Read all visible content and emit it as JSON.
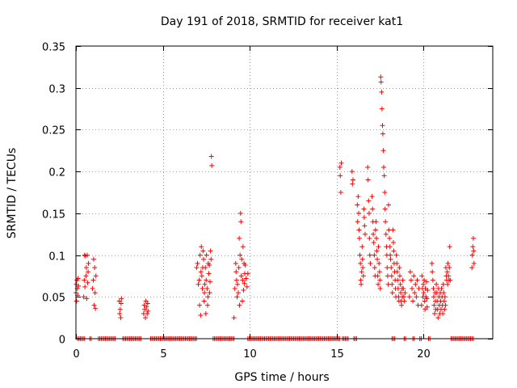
{
  "chart_data": {
    "type": "scatter",
    "title": "Day 191 of 2018, SRMTID for receiver kat1",
    "xlabel": "GPS time / hours",
    "ylabel": "SRMTID / TECUs",
    "xlim": [
      0,
      24
    ],
    "ylim": [
      0,
      0.35
    ],
    "xticks": [
      0,
      5,
      10,
      15,
      20
    ],
    "xtick_labels": [
      "0",
      "5",
      "10",
      "15",
      "20"
    ],
    "yticks": [
      0,
      0.05,
      0.1,
      0.15,
      0.2,
      0.25,
      0.3,
      0.35
    ],
    "ytick_labels": [
      "0",
      "0.05",
      "0.1",
      "0.15",
      "0.2",
      "0.25",
      "0.3",
      "0.35"
    ],
    "grid": true,
    "marker": "+",
    "color": "#ff0000",
    "series": [
      {
        "name": "SRMTID",
        "points": [
          [
            0.0,
            0.055
          ],
          [
            0.02,
            0.065
          ],
          [
            0.04,
            0.045
          ],
          [
            0.06,
            0.07
          ],
          [
            0.08,
            0.06
          ],
          [
            0.1,
            0.052
          ],
          [
            0.12,
            0.072
          ],
          [
            0.15,
            0.063
          ],
          [
            0.45,
            0.05
          ],
          [
            0.48,
            0.07
          ],
          [
            0.5,
            0.1
          ],
          [
            0.52,
            0.062
          ],
          [
            0.55,
            0.099
          ],
          [
            0.58,
            0.075
          ],
          [
            0.6,
            0.085
          ],
          [
            0.62,
            0.048
          ],
          [
            0.65,
            0.1
          ],
          [
            0.68,
            0.067
          ],
          [
            0.7,
            0.08
          ],
          [
            0.72,
            0.09
          ],
          [
            0.95,
            0.06
          ],
          [
            1.0,
            0.07
          ],
          [
            1.02,
            0.095
          ],
          [
            1.05,
            0.04
          ],
          [
            1.08,
            0.085
          ],
          [
            1.1,
            0.055
          ],
          [
            1.12,
            0.036
          ],
          [
            1.15,
            0.075
          ],
          [
            2.5,
            0.045
          ],
          [
            2.52,
            0.03
          ],
          [
            2.55,
            0.035
          ],
          [
            2.58,
            0.025
          ],
          [
            2.6,
            0.042
          ],
          [
            2.62,
            0.048
          ],
          [
            3.9,
            0.03
          ],
          [
            3.93,
            0.04
          ],
          [
            3.96,
            0.035
          ],
          [
            4.0,
            0.025
          ],
          [
            4.03,
            0.045
          ],
          [
            4.06,
            0.038
          ],
          [
            4.1,
            0.03
          ],
          [
            4.13,
            0.042
          ],
          [
            4.15,
            0.033
          ],
          [
            6.95,
            0.085
          ],
          [
            7.0,
            0.09
          ],
          [
            7.05,
            0.065
          ],
          [
            7.1,
            0.07
          ],
          [
            7.12,
            0.04
          ],
          [
            7.15,
            0.1
          ],
          [
            7.18,
            0.028
          ],
          [
            7.2,
            0.08
          ],
          [
            7.22,
            0.11
          ],
          [
            7.25,
            0.075
          ],
          [
            7.28,
            0.06
          ],
          [
            7.3,
            0.085
          ],
          [
            7.32,
            0.105
          ],
          [
            7.35,
            0.095
          ],
          [
            7.38,
            0.045
          ],
          [
            7.4,
            0.055
          ],
          [
            7.42,
            0.065
          ],
          [
            7.45,
            0.085
          ],
          [
            7.48,
            0.03
          ],
          [
            7.5,
            0.07
          ],
          [
            7.52,
            0.1
          ],
          [
            7.55,
            0.06
          ],
          [
            7.58,
            0.04
          ],
          [
            7.6,
            0.05
          ],
          [
            7.62,
            0.09
          ],
          [
            7.65,
            0.078
          ],
          [
            7.68,
            0.088
          ],
          [
            7.7,
            0.055
          ],
          [
            7.72,
            0.068
          ],
          [
            7.75,
            0.105
          ],
          [
            7.78,
            0.095
          ],
          [
            7.8,
            0.218
          ],
          [
            7.82,
            0.207
          ],
          [
            9.1,
            0.025
          ],
          [
            9.15,
            0.06
          ],
          [
            9.2,
            0.09
          ],
          [
            9.22,
            0.08
          ],
          [
            9.25,
            0.07
          ],
          [
            9.28,
            0.05
          ],
          [
            9.3,
            0.065
          ],
          [
            9.35,
            0.055
          ],
          [
            9.38,
            0.085
          ],
          [
            9.4,
            0.12
          ],
          [
            9.42,
            0.04
          ],
          [
            9.45,
            0.1
          ],
          [
            9.48,
            0.15
          ],
          [
            9.5,
            0.14
          ],
          [
            9.52,
            0.075
          ],
          [
            9.55,
            0.095
          ],
          [
            9.58,
            0.045
          ],
          [
            9.6,
            0.07
          ],
          [
            9.62,
            0.11
          ],
          [
            9.65,
            0.058
          ],
          [
            9.68,
            0.09
          ],
          [
            9.7,
            0.066
          ],
          [
            9.72,
            0.078
          ],
          [
            9.75,
            0.088
          ],
          [
            9.8,
            0.072
          ],
          [
            9.85,
            0.062
          ],
          [
            9.9,
            0.078
          ],
          [
            15.2,
            0.205
          ],
          [
            15.22,
            0.195
          ],
          [
            15.25,
            0.175
          ],
          [
            15.28,
            0.21
          ],
          [
            15.9,
            0.2
          ],
          [
            15.92,
            0.185
          ],
          [
            15.95,
            0.19
          ],
          [
            16.2,
            0.16
          ],
          [
            16.22,
            0.14
          ],
          [
            16.25,
            0.17
          ],
          [
            16.28,
            0.15
          ],
          [
            16.3,
            0.13
          ],
          [
            16.32,
            0.12
          ],
          [
            16.35,
            0.1
          ],
          [
            16.38,
            0.09
          ],
          [
            16.4,
            0.07
          ],
          [
            16.42,
            0.065
          ],
          [
            16.45,
            0.08
          ],
          [
            16.48,
            0.11
          ],
          [
            16.5,
            0.095
          ],
          [
            16.52,
            0.085
          ],
          [
            16.55,
            0.075
          ],
          [
            16.58,
            0.155
          ],
          [
            16.6,
            0.145
          ],
          [
            16.62,
            0.135
          ],
          [
            16.65,
            0.125
          ],
          [
            16.8,
            0.205
          ],
          [
            16.82,
            0.19
          ],
          [
            16.85,
            0.165
          ],
          [
            16.88,
            0.15
          ],
          [
            16.9,
            0.12
          ],
          [
            16.92,
            0.1
          ],
          [
            16.95,
            0.09
          ],
          [
            17.05,
            0.17
          ],
          [
            17.08,
            0.155
          ],
          [
            17.1,
            0.14
          ],
          [
            17.12,
            0.125
          ],
          [
            17.15,
            0.115
          ],
          [
            17.18,
            0.1
          ],
          [
            17.2,
            0.085
          ],
          [
            17.22,
            0.075
          ],
          [
            17.25,
            0.13
          ],
          [
            17.28,
            0.14
          ],
          [
            17.3,
            0.12
          ],
          [
            17.32,
            0.105
          ],
          [
            17.35,
            0.095
          ],
          [
            17.38,
            0.075
          ],
          [
            17.4,
            0.065
          ],
          [
            17.42,
            0.11
          ],
          [
            17.45,
            0.09
          ],
          [
            17.48,
            0.08
          ],
          [
            17.5,
            0.07
          ],
          [
            17.52,
            0.06
          ],
          [
            17.55,
            0.313
          ],
          [
            17.57,
            0.307
          ],
          [
            17.6,
            0.295
          ],
          [
            17.62,
            0.275
          ],
          [
            17.65,
            0.255
          ],
          [
            17.67,
            0.245
          ],
          [
            17.7,
            0.225
          ],
          [
            17.72,
            0.205
          ],
          [
            17.75,
            0.195
          ],
          [
            17.78,
            0.175
          ],
          [
            17.8,
            0.155
          ],
          [
            17.82,
            0.14
          ],
          [
            17.85,
            0.125
          ],
          [
            17.88,
            0.11
          ],
          [
            17.9,
            0.1
          ],
          [
            17.92,
            0.085
          ],
          [
            17.95,
            0.075
          ],
          [
            17.98,
            0.065
          ],
          [
            18.0,
            0.16
          ],
          [
            18.02,
            0.13
          ],
          [
            18.05,
            0.12
          ],
          [
            18.08,
            0.11
          ],
          [
            18.1,
            0.1
          ],
          [
            18.12,
            0.095
          ],
          [
            18.15,
            0.085
          ],
          [
            18.18,
            0.075
          ],
          [
            18.2,
            0.065
          ],
          [
            18.22,
            0.055
          ],
          [
            18.25,
            0.13
          ],
          [
            18.28,
            0.115
          ],
          [
            18.3,
            0.105
          ],
          [
            18.32,
            0.09
          ],
          [
            18.35,
            0.08
          ],
          [
            18.38,
            0.07
          ],
          [
            18.4,
            0.06
          ],
          [
            18.42,
            0.05
          ],
          [
            18.45,
            0.1
          ],
          [
            18.48,
            0.09
          ],
          [
            18.5,
            0.08
          ],
          [
            18.52,
            0.07
          ],
          [
            18.55,
            0.06
          ],
          [
            18.58,
            0.05
          ],
          [
            18.6,
            0.045
          ],
          [
            18.62,
            0.085
          ],
          [
            18.65,
            0.075
          ],
          [
            18.68,
            0.065
          ],
          [
            18.7,
            0.055
          ],
          [
            18.72,
            0.045
          ],
          [
            18.75,
            0.04
          ],
          [
            18.78,
            0.06
          ],
          [
            18.8,
            0.05
          ],
          [
            18.82,
            0.07
          ],
          [
            18.85,
            0.06
          ],
          [
            18.88,
            0.05
          ],
          [
            18.9,
            0.045
          ],
          [
            18.95,
            0.055
          ],
          [
            19.2,
            0.05
          ],
          [
            19.25,
            0.08
          ],
          [
            19.3,
            0.07
          ],
          [
            19.35,
            0.06
          ],
          [
            19.4,
            0.045
          ],
          [
            19.45,
            0.075
          ],
          [
            19.5,
            0.055
          ],
          [
            19.55,
            0.065
          ],
          [
            19.6,
            0.05
          ],
          [
            19.65,
            0.07
          ],
          [
            19.7,
            0.04
          ],
          [
            19.75,
            0.06
          ],
          [
            19.9,
            0.04
          ],
          [
            19.92,
            0.075
          ],
          [
            19.95,
            0.06
          ],
          [
            19.98,
            0.05
          ],
          [
            20.0,
            0.065
          ],
          [
            20.02,
            0.055
          ],
          [
            20.05,
            0.07
          ],
          [
            20.08,
            0.045
          ],
          [
            20.1,
            0.035
          ],
          [
            20.12,
            0.06
          ],
          [
            20.15,
            0.05
          ],
          [
            20.18,
            0.068
          ],
          [
            20.2,
            0.048
          ],
          [
            20.22,
            0.038
          ],
          [
            20.25,
            0.058
          ],
          [
            20.5,
            0.09
          ],
          [
            20.52,
            0.08
          ],
          [
            20.55,
            0.07
          ],
          [
            20.58,
            0.06
          ],
          [
            20.6,
            0.05
          ],
          [
            20.62,
            0.04
          ],
          [
            20.65,
            0.03
          ],
          [
            20.68,
            0.055
          ],
          [
            20.7,
            0.045
          ],
          [
            20.72,
            0.035
          ],
          [
            20.75,
            0.065
          ],
          [
            20.78,
            0.055
          ],
          [
            20.8,
            0.045
          ],
          [
            20.82,
            0.035
          ],
          [
            20.85,
            0.025
          ],
          [
            20.88,
            0.06
          ],
          [
            20.9,
            0.05
          ],
          [
            20.92,
            0.04
          ],
          [
            20.95,
            0.03
          ],
          [
            20.98,
            0.055
          ],
          [
            21.0,
            0.045
          ],
          [
            21.02,
            0.035
          ],
          [
            21.05,
            0.06
          ],
          [
            21.08,
            0.05
          ],
          [
            21.1,
            0.04
          ],
          [
            21.12,
            0.03
          ],
          [
            21.15,
            0.065
          ],
          [
            21.18,
            0.055
          ],
          [
            21.2,
            0.045
          ],
          [
            21.22,
            0.035
          ],
          [
            21.25,
            0.05
          ],
          [
            21.28,
            0.04
          ],
          [
            21.3,
            0.085
          ],
          [
            21.32,
            0.075
          ],
          [
            21.35,
            0.07
          ],
          [
            21.38,
            0.08
          ],
          [
            21.4,
            0.065
          ],
          [
            21.42,
            0.09
          ],
          [
            21.45,
            0.075
          ],
          [
            21.48,
            0.07
          ],
          [
            21.5,
            0.085
          ],
          [
            21.52,
            0.11
          ],
          [
            21.55,
            0.07
          ],
          [
            22.8,
            0.085
          ],
          [
            22.82,
            0.1
          ],
          [
            22.85,
            0.11
          ],
          [
            22.88,
            0.12
          ],
          [
            22.9,
            0.105
          ],
          [
            22.92,
            0.09
          ]
        ],
        "zero_value_runs": [
          [
            0.1,
            0.5
          ],
          [
            0.8,
            0.95
          ],
          [
            1.3,
            2.3
          ],
          [
            2.7,
            3.8
          ],
          [
            4.3,
            7.0
          ],
          [
            7.9,
            9.1
          ],
          [
            9.9,
            15.2
          ],
          [
            15.35,
            15.7
          ],
          [
            16.0,
            16.2
          ],
          [
            18.2,
            18.4
          ],
          [
            18.9,
            19.05
          ],
          [
            19.4,
            19.5
          ],
          [
            19.8,
            19.9
          ],
          [
            20.3,
            20.4
          ],
          [
            21.6,
            22.9
          ]
        ]
      }
    ]
  }
}
